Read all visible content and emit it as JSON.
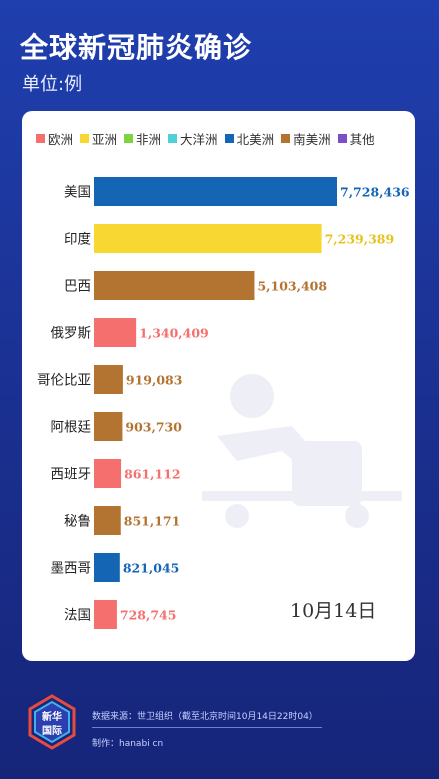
{
  "header": {
    "title": "全球新冠肺炎确诊",
    "unit": "单位:例"
  },
  "legend": [
    {
      "label": "欧洲",
      "color": "#f46f6d"
    },
    {
      "label": "亚洲",
      "color": "#f9d733"
    },
    {
      "label": "非洲",
      "color": "#7fd33f"
    },
    {
      "label": "大洋洲",
      "color": "#4fd0d8"
    },
    {
      "label": "北美洲",
      "color": "#1565b5"
    },
    {
      "label": "南美洲",
      "color": "#b37331"
    },
    {
      "label": "其他",
      "color": "#7a4fc8"
    }
  ],
  "chart_data": {
    "type": "bar",
    "orientation": "horizontal",
    "categories": [
      "美国",
      "印度",
      "巴西",
      "俄罗斯",
      "哥伦比亚",
      "阿根廷",
      "西班牙",
      "秘鲁",
      "墨西哥",
      "法国"
    ],
    "values": [
      7728436,
      7239389,
      5103408,
      1340409,
      919083,
      903730,
      861112,
      851171,
      821045,
      728745
    ],
    "value_labels": [
      "7,728,436",
      "7,239,389",
      "5,103,408",
      "1,340,409",
      "919,083",
      "903,730",
      "861,112",
      "851,171",
      "821,045",
      "728,745"
    ],
    "regions": [
      "北美洲",
      "亚洲",
      "南美洲",
      "欧洲",
      "南美洲",
      "南美洲",
      "欧洲",
      "南美洲",
      "北美洲",
      "欧洲"
    ],
    "date": "10月14日"
  },
  "footer": {
    "logo_text": [
      "新华",
      "国际"
    ],
    "source": "数据来源：世卫组织（截至北京时间10月14日22时04）",
    "credit": "制作：hanabi cn"
  }
}
